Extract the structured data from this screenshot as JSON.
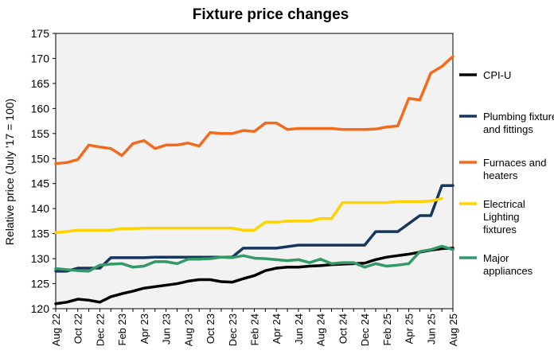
{
  "chart_data": {
    "type": "line",
    "title": "Fixture price changes",
    "xlabel": "",
    "ylabel": "Relative price (July '17 = 100)",
    "ylim": [
      120,
      175
    ],
    "yticks": [
      120,
      125,
      130,
      135,
      140,
      145,
      150,
      155,
      160,
      165,
      170,
      175
    ],
    "grid": false,
    "plot_background": "#f2f2f2",
    "legend_position": "right",
    "x": [
      "Aug 22",
      "Sep 22",
      "Oct 22",
      "Nov 22",
      "Dec 22",
      "Jan 23",
      "Feb 23",
      "Mar 23",
      "Apr 23",
      "May 23",
      "Jun 23",
      "Jul 23",
      "Aug 23",
      "Sep 23",
      "Oct 23",
      "Nov 23",
      "Dec 23",
      "Jan 24",
      "Feb 24",
      "Mar 24",
      "Apr 24",
      "May 24",
      "Jun 24",
      "Jul 24",
      "Aug 24",
      "Sep 24",
      "Oct 24",
      "Nov 24",
      "Dec 24",
      "Jan 25",
      "Feb 25",
      "Mar 25",
      "Apr 25",
      "May 25",
      "Jun 25",
      "Jul 25",
      "Aug 25"
    ],
    "xtick_labels": [
      "Aug 22",
      "Oct 22",
      "Dec 22",
      "Feb 23",
      "Apr 23",
      "Jun 23",
      "Aug 23",
      "Oct 23",
      "Dec 23",
      "Feb 24",
      "Apr 24",
      "Jun 24",
      "Aug 24",
      "Oct 24",
      "Dec 24",
      "Feb 25",
      "Apr 25",
      "Jun 25",
      "Aug 25"
    ],
    "series": [
      {
        "name": "CPI-U",
        "color": "#000000",
        "values": [
          121.0,
          121.3,
          121.9,
          121.7,
          121.3,
          122.4,
          123.0,
          123.5,
          124.1,
          124.4,
          124.7,
          125.0,
          125.5,
          125.8,
          125.8,
          125.4,
          125.3,
          126.0,
          126.6,
          127.6,
          128.1,
          128.3,
          128.3,
          128.5,
          128.6,
          128.8,
          128.9,
          129.0,
          129.1,
          129.8,
          130.3,
          130.6,
          130.9,
          131.3,
          131.7,
          132.0,
          132.1
        ]
      },
      {
        "name": "Plumbing fixtures and fittings",
        "color": "#17365d",
        "values": [
          127.5,
          127.5,
          128.1,
          128.1,
          128.1,
          130.2,
          130.2,
          130.2,
          130.2,
          130.3,
          130.3,
          130.3,
          130.3,
          130.3,
          130.3,
          130.3,
          130.3,
          132.1,
          132.1,
          132.1,
          132.1,
          132.4,
          132.7,
          132.7,
          132.7,
          132.7,
          132.7,
          132.7,
          132.7,
          135.4,
          135.4,
          135.4,
          137.0,
          138.6,
          138.6,
          144.6,
          144.6
        ]
      },
      {
        "name": "Furnaces and heaters",
        "color": "#f26b1d",
        "values": [
          149.0,
          149.2,
          149.8,
          152.7,
          152.3,
          152.0,
          150.6,
          153.0,
          153.6,
          152.0,
          152.7,
          152.7,
          153.1,
          152.5,
          155.2,
          155.0,
          155.0,
          155.6,
          155.4,
          157.1,
          157.1,
          155.8,
          156.0,
          156.0,
          156.0,
          156.0,
          155.8,
          155.8,
          155.8,
          155.9,
          156.3,
          156.5,
          162.0,
          161.7,
          167.1,
          168.4,
          170.4
        ]
      },
      {
        "name": "Electrical Lighting fixtures",
        "color": "#ffd300",
        "values": [
          135.2,
          135.4,
          135.7,
          135.7,
          135.7,
          135.7,
          136.0,
          136.0,
          136.1,
          136.1,
          136.1,
          136.1,
          136.1,
          136.1,
          136.1,
          136.1,
          136.1,
          135.7,
          135.7,
          137.3,
          137.3,
          137.5,
          137.5,
          137.5,
          138.0,
          138.0,
          141.2,
          141.2,
          141.2,
          141.2,
          141.2,
          141.4,
          141.4,
          141.4,
          141.5,
          142.0,
          null
        ]
      },
      {
        "name": "Major appliances",
        "color": "#339966",
        "values": [
          128.0,
          127.8,
          127.6,
          127.5,
          128.7,
          128.9,
          129.0,
          128.3,
          128.5,
          129.4,
          129.4,
          129.0,
          129.9,
          129.9,
          130.0,
          130.3,
          130.2,
          130.6,
          130.1,
          130.0,
          129.8,
          129.6,
          129.8,
          129.2,
          129.9,
          129.0,
          129.2,
          129.2,
          128.3,
          129.0,
          128.5,
          128.7,
          129.0,
          131.4,
          131.8,
          132.5,
          131.8
        ]
      }
    ]
  }
}
